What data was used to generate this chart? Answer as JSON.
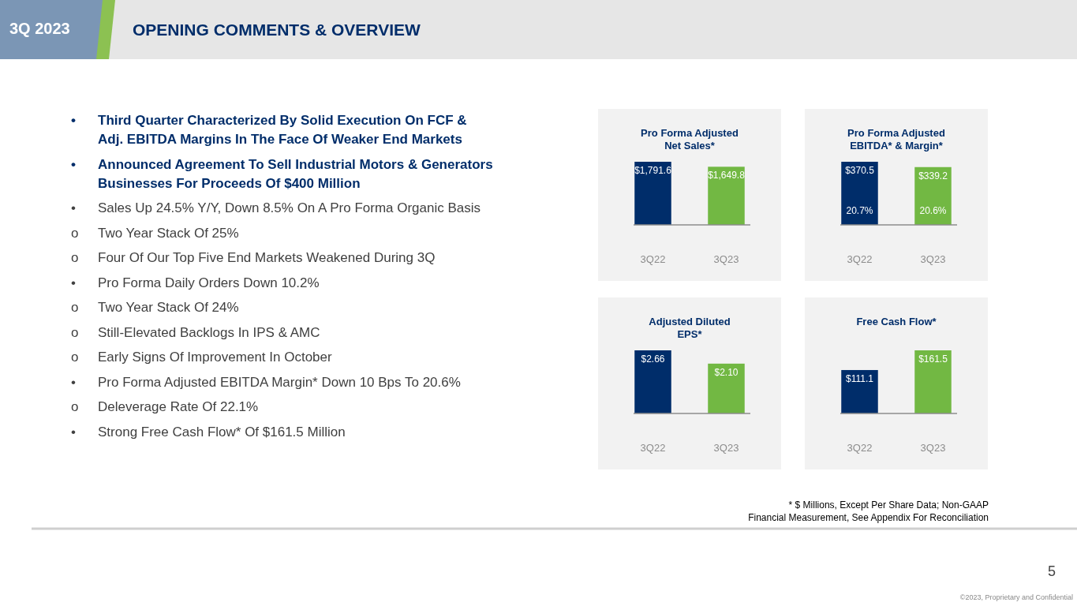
{
  "chart_data": [
    {
      "type": "other",
      "title": "OPENING COMMENTS & OVERVIEW",
      "subtitle": "3Q 2023",
      "annotations": [
        "• Third Quarter Characterized By Solid Execution On FCF & Adj. EBITDA Margins In The Face Of Weaker End Markets",
        "• Announced Agreement To Sell Industrial Motors & Generators Businesses For Proceeds Of $400 Million",
        "• Sales Up 24.5% Y/Y, Down 8.5% On A Pro Forma Organic Basis",
        "o Two Year Stack Of 25%",
        "o Four Of Our Top Five End Markets Weakened During 3Q",
        "• Pro Forma Daily Orders Down 10.2%",
        "o Two Year Stack Of 24%",
        "o Still-Elevated Backlogs In IPS & AMC",
        "o Early Signs Of Improvement In October",
        "• Pro Forma Adjusted EBITDA Margin* Down 10 Bps To 20.6%",
        "o Deleverage Rate Of 22.1%",
        "• Strong Free Cash Flow* Of $161.5 Million",
        "* $ Millions, Except Per Share Data; Non-GAAP Financial Measurement, See Appendix For Reconciliation",
        "5",
        "©2023, Proprietary and Confidential"
      ]
    },
    {
      "type": "bar",
      "title": "Pro Forma Adjusted Net Sales*",
      "categories": [
        "3Q22",
        "3Q23"
      ],
      "values": [
        1791.6,
        1649.8
      ],
      "colors": [
        "#002d6a",
        "#72b843"
      ],
      "data_labels": true,
      "value_labels": [
        "$1,791.6",
        "$1,649.8"
      ]
    },
    {
      "type": "bar",
      "title": "Pro Forma Adjusted EBITDA* & Margin*",
      "categories": [
        "3Q22",
        "3Q23"
      ],
      "values": [
        370.5,
        339.2
      ],
      "colors": [
        "#002d6a",
        "#72b843"
      ],
      "data_labels": true,
      "value_labels": [
        "$370.5",
        "$339.2"
      ],
      "annotations": [
        "20.7%",
        "20.6%"
      ]
    },
    {
      "type": "bar",
      "title": "Adjusted Diluted EPS*",
      "categories": [
        "3Q22",
        "3Q23"
      ],
      "values": [
        2.66,
        2.1
      ],
      "colors": [
        "#002d6a",
        "#72b843"
      ],
      "data_labels": true,
      "value_labels": [
        "$2.66",
        "$2.10"
      ]
    },
    {
      "type": "bar",
      "title": "Free Cash Flow*",
      "categories": [
        "3Q22",
        "3Q23"
      ],
      "values": [
        111.1,
        161.5
      ],
      "colors": [
        "#002d6a",
        "#72b843"
      ],
      "data_labels": true,
      "value_labels": [
        "$111.1",
        "$161.5"
      ]
    }
  ]
}
